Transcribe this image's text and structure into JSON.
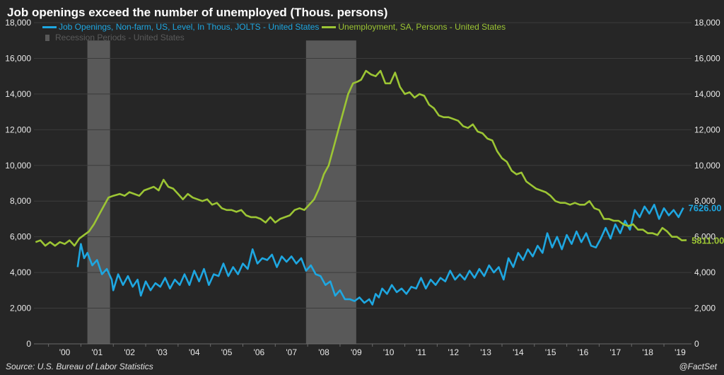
{
  "title": "Job openings exceed the number of unemployed (Thous. persons)",
  "source": "Source: U.S. Bureau of Labor Statistics",
  "credit": "@FactSet",
  "colors": {
    "background": "#262626",
    "grid": "#3c3c3c",
    "job_openings": "#1ea7e1",
    "unemployment": "#9cc534",
    "recession": "#595959",
    "axis_text": "#e8e8e8"
  },
  "legend": {
    "job_openings": "Job Openings, Non-farm, US, Level, In Thous, JOLTS - United States",
    "unemployment": "Unemployment, SA, Persons - United States",
    "recession": "Recession Periods - United States"
  },
  "chart_data": {
    "type": "line",
    "title": "Job openings exceed the number of unemployed (Thous. persons)",
    "x_ticks": [
      "'00",
      "'01",
      "'02",
      "'03",
      "'04",
      "'05",
      "'06",
      "'07",
      "'08",
      "'09",
      "'10",
      "'11",
      "'12",
      "'13",
      "'14",
      "'15",
      "'16",
      "'17",
      "'18",
      "'19"
    ],
    "y_ticks": [
      "0",
      "2,000",
      "4,000",
      "6,000",
      "8,000",
      "10,000",
      "12,000",
      "14,000",
      "16,000",
      "18,000"
    ],
    "ylim": [
      0,
      18000
    ],
    "xlim": [
      1999.55,
      2019.85
    ],
    "grid": true,
    "recessions": [
      [
        2001.2,
        2001.9
      ],
      [
        2007.95,
        2009.5
      ]
    ],
    "series": [
      {
        "name": "Job Openings, Non-farm, US, Level, In Thous, JOLTS - United States",
        "last_label": "7626.00",
        "points": [
          [
            2000.9,
            4300
          ],
          [
            2001.0,
            5600
          ],
          [
            2001.1,
            4800
          ],
          [
            2001.2,
            5100
          ],
          [
            2001.35,
            4400
          ],
          [
            2001.5,
            4700
          ],
          [
            2001.65,
            3900
          ],
          [
            2001.8,
            4200
          ],
          [
            2001.95,
            3600
          ],
          [
            2002.0,
            3000
          ],
          [
            2002.15,
            3900
          ],
          [
            2002.3,
            3300
          ],
          [
            2002.45,
            3800
          ],
          [
            2002.6,
            3200
          ],
          [
            2002.75,
            3600
          ],
          [
            2002.85,
            2700
          ],
          [
            2003.0,
            3500
          ],
          [
            2003.15,
            3000
          ],
          [
            2003.3,
            3400
          ],
          [
            2003.45,
            3200
          ],
          [
            2003.6,
            3700
          ],
          [
            2003.75,
            3100
          ],
          [
            2003.9,
            3600
          ],
          [
            2004.05,
            3300
          ],
          [
            2004.2,
            3900
          ],
          [
            2004.35,
            3300
          ],
          [
            2004.5,
            4100
          ],
          [
            2004.65,
            3500
          ],
          [
            2004.8,
            4200
          ],
          [
            2004.95,
            3300
          ],
          [
            2005.1,
            3900
          ],
          [
            2005.25,
            3800
          ],
          [
            2005.4,
            4500
          ],
          [
            2005.55,
            3800
          ],
          [
            2005.7,
            4300
          ],
          [
            2005.85,
            3900
          ],
          [
            2006.0,
            4500
          ],
          [
            2006.15,
            4200
          ],
          [
            2006.3,
            5300
          ],
          [
            2006.45,
            4500
          ],
          [
            2006.6,
            4800
          ],
          [
            2006.75,
            4700
          ],
          [
            2006.9,
            5000
          ],
          [
            2007.05,
            4300
          ],
          [
            2007.2,
            4900
          ],
          [
            2007.35,
            4600
          ],
          [
            2007.5,
            4900
          ],
          [
            2007.65,
            4500
          ],
          [
            2007.8,
            4800
          ],
          [
            2007.95,
            4100
          ],
          [
            2008.1,
            4400
          ],
          [
            2008.25,
            3900
          ],
          [
            2008.4,
            3800
          ],
          [
            2008.55,
            3300
          ],
          [
            2008.7,
            3500
          ],
          [
            2008.85,
            2700
          ],
          [
            2009.0,
            3000
          ],
          [
            2009.15,
            2500
          ],
          [
            2009.3,
            2500
          ],
          [
            2009.45,
            2400
          ],
          [
            2009.6,
            2600
          ],
          [
            2009.75,
            2300
          ],
          [
            2009.9,
            2500
          ],
          [
            2010.0,
            2200
          ],
          [
            2010.1,
            2800
          ],
          [
            2010.2,
            2600
          ],
          [
            2010.3,
            3100
          ],
          [
            2010.45,
            2800
          ],
          [
            2010.6,
            3300
          ],
          [
            2010.75,
            2900
          ],
          [
            2010.9,
            3100
          ],
          [
            2011.05,
            2800
          ],
          [
            2011.2,
            3200
          ],
          [
            2011.35,
            3100
          ],
          [
            2011.5,
            3700
          ],
          [
            2011.65,
            3100
          ],
          [
            2011.8,
            3600
          ],
          [
            2011.95,
            3300
          ],
          [
            2012.1,
            3700
          ],
          [
            2012.25,
            3500
          ],
          [
            2012.4,
            4100
          ],
          [
            2012.55,
            3600
          ],
          [
            2012.7,
            3900
          ],
          [
            2012.85,
            3600
          ],
          [
            2013.0,
            4100
          ],
          [
            2013.15,
            3700
          ],
          [
            2013.3,
            4200
          ],
          [
            2013.45,
            3800
          ],
          [
            2013.6,
            4400
          ],
          [
            2013.75,
            4000
          ],
          [
            2013.9,
            4300
          ],
          [
            2014.05,
            3600
          ],
          [
            2014.2,
            4800
          ],
          [
            2014.35,
            4300
          ],
          [
            2014.5,
            5100
          ],
          [
            2014.65,
            4700
          ],
          [
            2014.8,
            5300
          ],
          [
            2014.95,
            4900
          ],
          [
            2015.1,
            5500
          ],
          [
            2015.25,
            5100
          ],
          [
            2015.4,
            6200
          ],
          [
            2015.55,
            5400
          ],
          [
            2015.7,
            6000
          ],
          [
            2015.85,
            5300
          ],
          [
            2016.0,
            6100
          ],
          [
            2016.15,
            5600
          ],
          [
            2016.3,
            6300
          ],
          [
            2016.45,
            5700
          ],
          [
            2016.6,
            6200
          ],
          [
            2016.75,
            5500
          ],
          [
            2016.9,
            5400
          ],
          [
            2017.05,
            5900
          ],
          [
            2017.2,
            6500
          ],
          [
            2017.35,
            5900
          ],
          [
            2017.5,
            6700
          ],
          [
            2017.65,
            6200
          ],
          [
            2017.8,
            6900
          ],
          [
            2017.95,
            6400
          ],
          [
            2018.1,
            7500
          ],
          [
            2018.25,
            7100
          ],
          [
            2018.4,
            7700
          ],
          [
            2018.55,
            7300
          ],
          [
            2018.7,
            7800
          ],
          [
            2018.85,
            7000
          ],
          [
            2019.0,
            7600
          ],
          [
            2019.15,
            7200
          ],
          [
            2019.3,
            7500
          ],
          [
            2019.45,
            7100
          ],
          [
            2019.6,
            7626
          ]
        ]
      },
      {
        "name": "Unemployment, SA, Persons - United States",
        "last_label": "5811.00",
        "points": [
          [
            1999.6,
            5700
          ],
          [
            1999.75,
            5800
          ],
          [
            1999.9,
            5500
          ],
          [
            2000.05,
            5700
          ],
          [
            2000.2,
            5500
          ],
          [
            2000.35,
            5700
          ],
          [
            2000.5,
            5600
          ],
          [
            2000.65,
            5800
          ],
          [
            2000.8,
            5500
          ],
          [
            2000.95,
            5900
          ],
          [
            2001.1,
            6100
          ],
          [
            2001.25,
            6300
          ],
          [
            2001.4,
            6700
          ],
          [
            2001.55,
            7200
          ],
          [
            2001.7,
            7700
          ],
          [
            2001.85,
            8200
          ],
          [
            2002.0,
            8300
          ],
          [
            2002.2,
            8400
          ],
          [
            2002.35,
            8300
          ],
          [
            2002.5,
            8500
          ],
          [
            2002.65,
            8400
          ],
          [
            2002.8,
            8300
          ],
          [
            2002.95,
            8600
          ],
          [
            2003.1,
            8700
          ],
          [
            2003.25,
            8800
          ],
          [
            2003.4,
            8600
          ],
          [
            2003.55,
            9200
          ],
          [
            2003.7,
            8800
          ],
          [
            2003.85,
            8700
          ],
          [
            2004.0,
            8400
          ],
          [
            2004.15,
            8100
          ],
          [
            2004.3,
            8400
          ],
          [
            2004.45,
            8200
          ],
          [
            2004.6,
            8100
          ],
          [
            2004.75,
            8000
          ],
          [
            2004.9,
            8100
          ],
          [
            2005.05,
            7800
          ],
          [
            2005.2,
            7900
          ],
          [
            2005.35,
            7600
          ],
          [
            2005.5,
            7500
          ],
          [
            2005.65,
            7500
          ],
          [
            2005.8,
            7400
          ],
          [
            2005.95,
            7500
          ],
          [
            2006.1,
            7200
          ],
          [
            2006.25,
            7100
          ],
          [
            2006.4,
            7100
          ],
          [
            2006.55,
            7000
          ],
          [
            2006.7,
            6800
          ],
          [
            2006.85,
            7100
          ],
          [
            2007.0,
            6800
          ],
          [
            2007.15,
            7000
          ],
          [
            2007.3,
            7100
          ],
          [
            2007.45,
            7200
          ],
          [
            2007.6,
            7500
          ],
          [
            2007.75,
            7600
          ],
          [
            2007.9,
            7500
          ],
          [
            2008.05,
            7800
          ],
          [
            2008.2,
            8100
          ],
          [
            2008.35,
            8700
          ],
          [
            2008.5,
            9500
          ],
          [
            2008.65,
            10000
          ],
          [
            2008.8,
            11000
          ],
          [
            2008.95,
            12000
          ],
          [
            2009.1,
            13000
          ],
          [
            2009.25,
            14000
          ],
          [
            2009.4,
            14600
          ],
          [
            2009.55,
            14700
          ],
          [
            2009.65,
            14800
          ],
          [
            2009.8,
            15300
          ],
          [
            2009.95,
            15100
          ],
          [
            2010.1,
            15000
          ],
          [
            2010.25,
            15300
          ],
          [
            2010.4,
            14600
          ],
          [
            2010.55,
            14600
          ],
          [
            2010.7,
            15200
          ],
          [
            2010.85,
            14400
          ],
          [
            2011.0,
            14000
          ],
          [
            2011.15,
            14100
          ],
          [
            2011.3,
            13800
          ],
          [
            2011.45,
            14000
          ],
          [
            2011.6,
            13900
          ],
          [
            2011.75,
            13400
          ],
          [
            2011.9,
            13200
          ],
          [
            2012.05,
            12800
          ],
          [
            2012.2,
            12700
          ],
          [
            2012.35,
            12700
          ],
          [
            2012.5,
            12600
          ],
          [
            2012.65,
            12500
          ],
          [
            2012.8,
            12200
          ],
          [
            2012.95,
            12100
          ],
          [
            2013.1,
            12300
          ],
          [
            2013.25,
            11900
          ],
          [
            2013.4,
            11800
          ],
          [
            2013.55,
            11500
          ],
          [
            2013.7,
            11400
          ],
          [
            2013.85,
            10800
          ],
          [
            2014.0,
            10400
          ],
          [
            2014.15,
            10200
          ],
          [
            2014.3,
            9700
          ],
          [
            2014.45,
            9500
          ],
          [
            2014.6,
            9600
          ],
          [
            2014.75,
            9100
          ],
          [
            2014.9,
            8900
          ],
          [
            2015.05,
            8700
          ],
          [
            2015.2,
            8600
          ],
          [
            2015.35,
            8500
          ],
          [
            2015.5,
            8300
          ],
          [
            2015.65,
            8000
          ],
          [
            2015.8,
            7900
          ],
          [
            2015.95,
            7900
          ],
          [
            2016.1,
            7800
          ],
          [
            2016.25,
            7900
          ],
          [
            2016.4,
            7800
          ],
          [
            2016.55,
            7800
          ],
          [
            2016.7,
            8000
          ],
          [
            2016.85,
            7600
          ],
          [
            2017.0,
            7500
          ],
          [
            2017.15,
            7000
          ],
          [
            2017.3,
            7000
          ],
          [
            2017.45,
            6900
          ],
          [
            2017.6,
            6900
          ],
          [
            2017.75,
            6700
          ],
          [
            2017.9,
            6600
          ],
          [
            2018.05,
            6700
          ],
          [
            2018.2,
            6400
          ],
          [
            2018.35,
            6400
          ],
          [
            2018.5,
            6200
          ],
          [
            2018.65,
            6200
          ],
          [
            2018.8,
            6100
          ],
          [
            2018.95,
            6500
          ],
          [
            2019.1,
            6300
          ],
          [
            2019.25,
            6000
          ],
          [
            2019.4,
            6000
          ],
          [
            2019.55,
            5800
          ],
          [
            2019.7,
            5811
          ]
        ]
      }
    ]
  }
}
